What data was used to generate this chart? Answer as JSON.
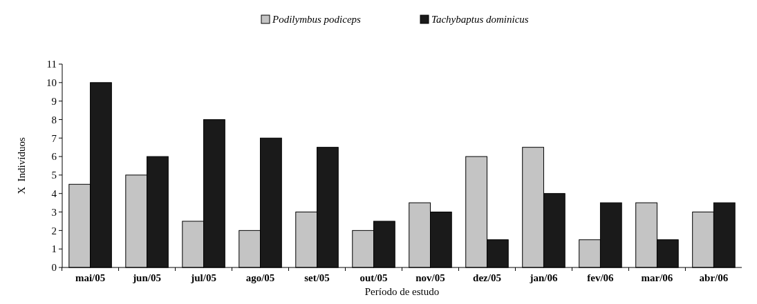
{
  "chart_data": {
    "type": "bar",
    "xlabel": "Período de estudo",
    "ylabel": "X  Indivíduos",
    "categories": [
      "mai/05",
      "jun/05",
      "jul/05",
      "ago/05",
      "set/05",
      "out/05",
      "nov/05",
      "dez/05",
      "jan/06",
      "fev/06",
      "mar/06",
      "abr/06"
    ],
    "series": [
      {
        "name": "Podilymbus podiceps",
        "color": "#c4c4c4",
        "values": [
          4.5,
          5,
          2.5,
          2,
          3,
          2,
          3.5,
          6,
          6.5,
          1.5,
          3.5,
          3
        ]
      },
      {
        "name": "Tachybaptus dominicus",
        "color": "#1a1a1a",
        "values": [
          10,
          6,
          8,
          7,
          6.5,
          2.5,
          3,
          1.5,
          4,
          3.5,
          1.5,
          3.5
        ]
      }
    ],
    "ylim": [
      0,
      11
    ],
    "yticks": [
      0,
      1,
      2,
      3,
      4,
      5,
      6,
      7,
      8,
      9,
      10,
      11
    ],
    "grid": false,
    "legend": "top"
  }
}
